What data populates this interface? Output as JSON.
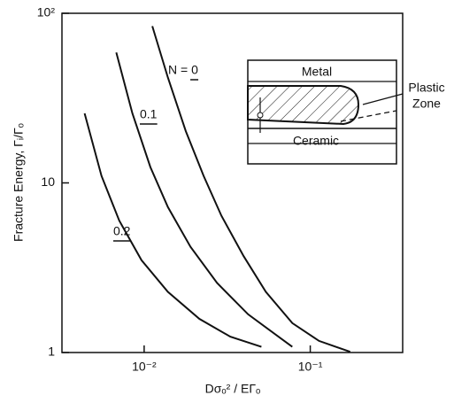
{
  "chart_data": {
    "type": "line",
    "xlabel": "Dσₒ² / EΓₒ",
    "ylabel": "Fracture Energy,  Γᵢ/Γₒ",
    "log_x": true,
    "log_y": true,
    "xlim": [
      0.0032,
      0.36
    ],
    "ylim": [
      1,
      100
    ],
    "xticks": [
      {
        "value": 0.01,
        "label": "10⁻²"
      },
      {
        "value": 0.1,
        "label": "10⁻¹"
      }
    ],
    "yticks": [
      1,
      10,
      {
        "value": 100,
        "label": "10²"
      }
    ],
    "series": [
      {
        "name": "N = 0",
        "color": "#111111",
        "x": [
          0.0112,
          0.0139,
          0.0178,
          0.0228,
          0.0292,
          0.0397,
          0.054,
          0.078,
          0.113,
          0.174
        ],
        "values": [
          84,
          41.8,
          20.2,
          11.0,
          6.4,
          3.7,
          2.28,
          1.49,
          1.17,
          1.01
        ]
      },
      {
        "name": "0.1",
        "color": "#111111",
        "x": [
          0.0068,
          0.0085,
          0.0109,
          0.0139,
          0.019,
          0.0275,
          0.0423,
          0.078
        ],
        "values": [
          58.7,
          25.7,
          12.4,
          7.2,
          4.2,
          2.57,
          1.68,
          1.08
        ]
      },
      {
        "name": "0.2",
        "color": "#111111",
        "x": [
          0.00438,
          0.00554,
          0.00708,
          0.00964,
          0.0139,
          0.0215,
          0.033,
          0.0508
        ],
        "values": [
          25.7,
          11.0,
          6.0,
          3.5,
          2.28,
          1.58,
          1.24,
          1.08
        ]
      }
    ],
    "inset_labels": [
      "Metal",
      "Ceramic",
      "Plastic",
      "Zone"
    ]
  }
}
